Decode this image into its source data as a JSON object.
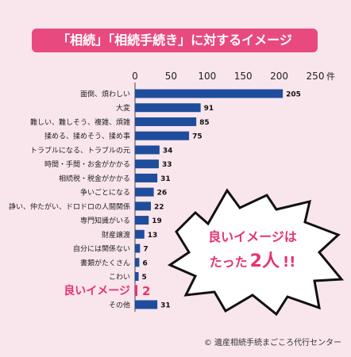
{
  "header": {
    "title": "「相続」「相続手続き」に対するイメージ"
  },
  "callout": {
    "line1": "良いイメージは",
    "line2_prefix": "たった",
    "line2_number": "2人",
    "line2_marks": "!!"
  },
  "credit": "© 遺産相続手続まごころ代行センター",
  "colors": {
    "bar": "#1e4d9c",
    "accent": "#e84a7f",
    "highlight_text": "#e5336f"
  },
  "chart_data": {
    "type": "bar",
    "orientation": "horizontal",
    "categories": [
      "面倒、煩わしい",
      "大変",
      "難しい、難しそう、複雑、煩雑",
      "揉める、揉めそう、揉め事",
      "トラブルになる、トラブルの元",
      "時間・手間・お金がかかる",
      "相続税・税金がかかる",
      "争いごとになる",
      "諍い、仲たがい、ドロドロの人間関係",
      "専門知識がいる",
      "財産譲渡",
      "自分には関係ない",
      "書類がたくさん",
      "こわい",
      "良いイメージ",
      "その他"
    ],
    "values": [
      205,
      91,
      85,
      75,
      34,
      33,
      31,
      26,
      22,
      19,
      13,
      7,
      6,
      5,
      2,
      31
    ],
    "value_labels": [
      "205",
      "91",
      "85",
      "75",
      "34",
      "33",
      "31",
      "26",
      "22",
      "19",
      "13",
      "7",
      "6",
      "5",
      "2",
      "31"
    ],
    "highlight_category": "良いイメージ",
    "xlim": [
      0,
      250
    ],
    "x_ticks": [
      "0",
      "50",
      "100",
      "150",
      "200",
      "250"
    ],
    "x_unit": "件",
    "title": "「相続」「相続手続き」に対するイメージ",
    "grid": false
  }
}
